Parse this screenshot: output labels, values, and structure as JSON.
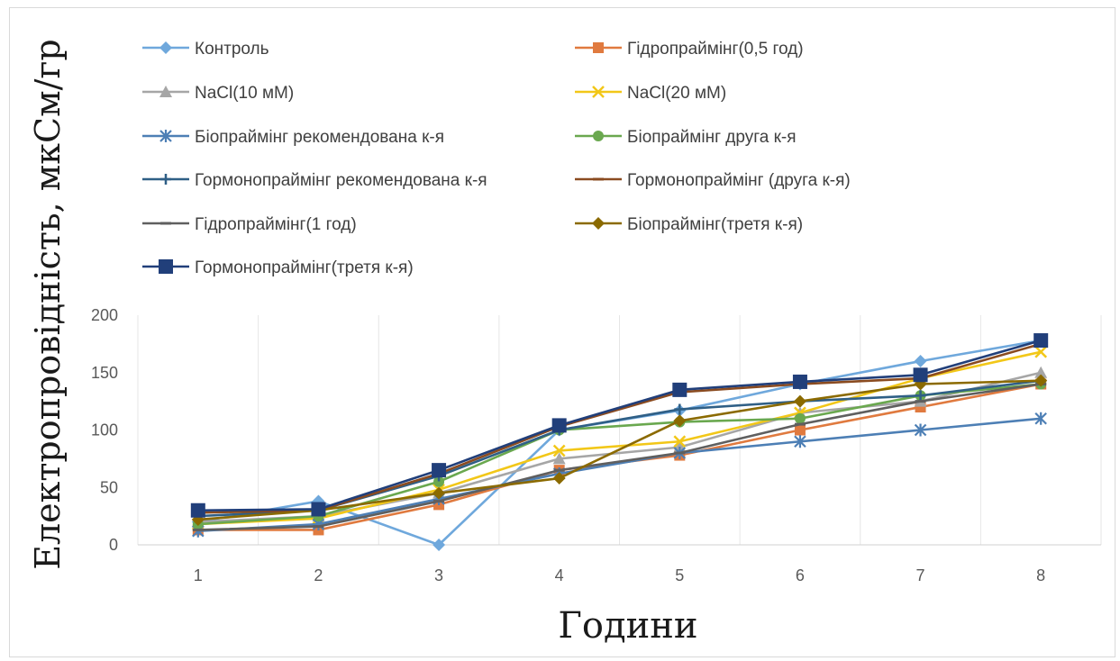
{
  "chart_data": {
    "type": "line",
    "title": "",
    "xlabel": "Години",
    "ylabel": "Електропровідність, мкСм/гр",
    "categories": [
      "1",
      "2",
      "3",
      "4",
      "5",
      "6",
      "7",
      "8"
    ],
    "yticks": [
      "0",
      "50",
      "100",
      "150",
      "200"
    ],
    "ylim": [
      0,
      200
    ],
    "grid": "vertical",
    "legend_position": "top",
    "series": [
      {
        "name": "Контроль",
        "color": "#6fa8dc",
        "marker": "diamond",
        "values": [
          20,
          38,
          0,
          100,
          117,
          140,
          160,
          178
        ]
      },
      {
        "name": "Гідропраймінг(0,5 год)",
        "color": "#e07a3f",
        "marker": "square",
        "values": [
          13,
          13,
          35,
          65,
          78,
          100,
          120,
          140
        ]
      },
      {
        "name": "NaCl(10 мМ)",
        "color": "#a6a6a6",
        "marker": "triangle",
        "values": [
          20,
          25,
          45,
          75,
          85,
          115,
          125,
          150
        ]
      },
      {
        "name": "NaCl(20 мМ)",
        "color": "#f2c718",
        "marker": "x",
        "values": [
          18,
          23,
          48,
          82,
          90,
          115,
          145,
          168
        ]
      },
      {
        "name": "Біопраймінг рекомендована к-я",
        "color": "#4d7fb5",
        "marker": "asterisk",
        "values": [
          12,
          18,
          40,
          62,
          80,
          90,
          100,
          110
        ]
      },
      {
        "name": "Біопраймінг друга к-я",
        "color": "#6aa84f",
        "marker": "circle",
        "values": [
          18,
          25,
          55,
          100,
          107,
          110,
          130,
          140
        ]
      },
      {
        "name": "Гормонопраймінг рекомендована к-я",
        "color": "#2f5f86",
        "marker": "plus",
        "values": [
          25,
          30,
          60,
          100,
          118,
          125,
          130,
          143
        ]
      },
      {
        "name": "Гормонопраймінг (друга к-я)",
        "color": "#8a4b20",
        "marker": "dash",
        "values": [
          28,
          30,
          62,
          103,
          133,
          140,
          145,
          175
        ]
      },
      {
        "name": "Гідропраймінг(1 год)",
        "color": "#5f5f5f",
        "marker": "dash",
        "values": [
          13,
          16,
          38,
          65,
          80,
          105,
          125,
          140
        ]
      },
      {
        "name": "Біопраймінг(третя к-я)",
        "color": "#8b6a00",
        "marker": "diamond",
        "values": [
          22,
          30,
          45,
          58,
          108,
          125,
          140,
          143
        ]
      },
      {
        "name": "Гормонопраймінг(третя к-я)",
        "color": "#213f7a",
        "marker": "square",
        "values": [
          30,
          31,
          65,
          104,
          135,
          142,
          148,
          178
        ]
      }
    ]
  }
}
